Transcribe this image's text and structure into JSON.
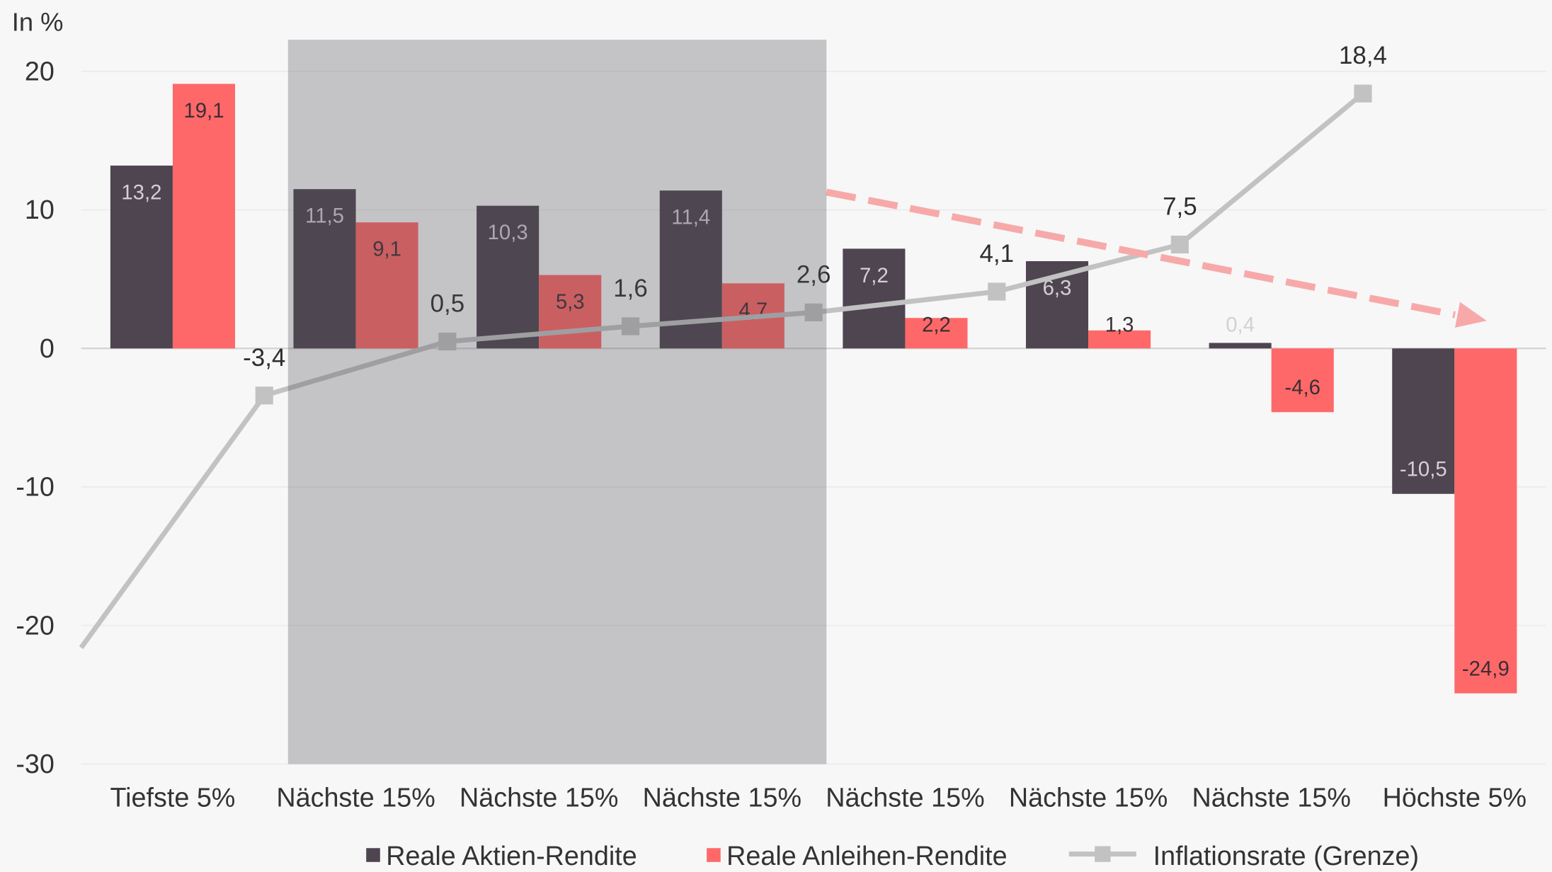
{
  "chart_data": {
    "type": "bar",
    "ylabel": "In %",
    "ylim": [
      -30,
      20
    ],
    "yticks": [
      20,
      10,
      0,
      -10,
      -20,
      -30
    ],
    "grid": true,
    "legend": "bottom-center",
    "categories": [
      "Tiefste 5%",
      "Nächste 15%",
      "Nächste 15%",
      "Nächste 15%",
      "Nächste 15%",
      "Nächste 15%",
      "Nächste 15%",
      "Höchste 5%"
    ],
    "series": [
      {
        "name": "Reale Aktien-Rendite",
        "type": "bar",
        "color": "#4e4550",
        "values": [
          13.2,
          11.5,
          10.3,
          11.4,
          7.2,
          6.3,
          0.4,
          -10.5
        ],
        "labels": [
          "13,2",
          "11,5",
          "10,3",
          "11,4",
          "7,2",
          "6,3",
          "0,4",
          "-10,5"
        ]
      },
      {
        "name": "Reale Anleihen-Rendite",
        "type": "bar",
        "color": "#ff6868",
        "values": [
          19.1,
          9.1,
          5.3,
          4.7,
          2.2,
          1.3,
          -4.6,
          -24.9
        ],
        "labels": [
          "19,1",
          "9,1",
          "5,3",
          "4,7",
          "2,2",
          "1,3",
          "-4,6",
          "-24,9"
        ]
      },
      {
        "name": "Inflationsrate (Grenze)",
        "type": "line",
        "color": "#c2c2c2",
        "values": [
          -21.6,
          -3.4,
          0.5,
          1.6,
          2.6,
          4.1,
          7.5,
          18.4
        ],
        "labels": [
          "",
          "-3,4",
          "0,5",
          "1,6",
          "2,6",
          "4,1",
          "7,5",
          "18,4"
        ]
      }
    ],
    "colors": {
      "background": "#f7f7f7",
      "grid": "#ebebeb",
      "zero_line": "#d3d3d3",
      "label_on_dark": "#d4d0d4",
      "label_on_red": "#3a2e36",
      "highlight_band": "rgba(80,75,85,0.30)",
      "trend_arrow": "#f7a9a9"
    }
  }
}
